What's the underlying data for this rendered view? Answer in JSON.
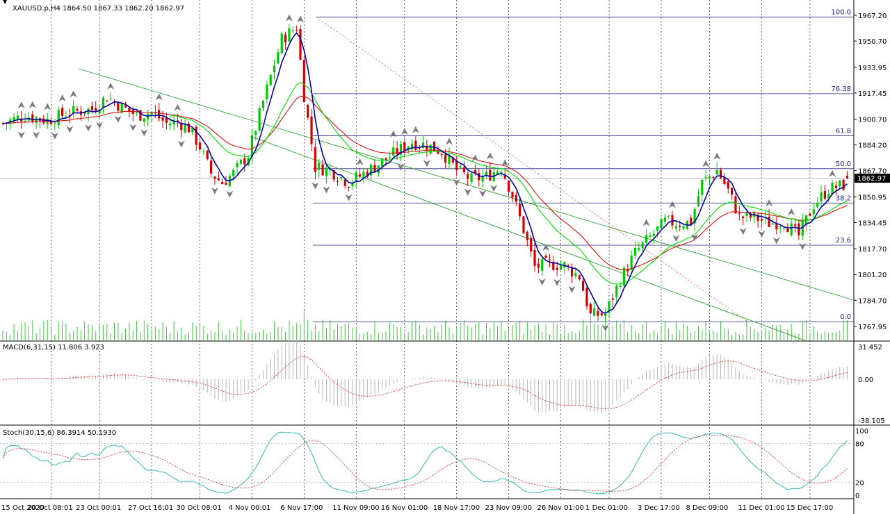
{
  "main": {
    "header": "XAUUSD.p,H4  1864.50 1867.33 1862.20 1862.97",
    "current_price": "1862.97",
    "price_ticks": [
      "1967.20",
      "1950.70",
      "1933.95",
      "1917.45",
      "1900.70",
      "1884.20",
      "1867.70",
      "1850.95",
      "1834.45",
      "1817.70",
      "1801.20",
      "1784.70",
      "1767.95"
    ],
    "fib_levels": [
      {
        "label": "100.0",
        "price": 1966
      },
      {
        "label": "76.38",
        "price": 1917
      },
      {
        "label": "61.8",
        "price": 1890
      },
      {
        "label": "50.0",
        "price": 1869
      },
      {
        "label": "38.2",
        "price": 1847
      },
      {
        "label": "23.6",
        "price": 1820
      },
      {
        "label": "0.0",
        "price": 1771
      }
    ],
    "date_labels": [
      "15 Oct 2020",
      "20 Oct 08:01",
      "23 Oct 00:01",
      "27 Oct 16:01",
      "30 Oct 08:01",
      "4 Nov 00:01",
      "6 Nov 17:00",
      "11 Nov 09:00",
      "16 Nov 01:00",
      "18 Nov 17:00",
      "23 Nov 09:00",
      "26 Nov 01:00",
      "1 Dec 01:00",
      "3 Dec 17:00",
      "8 Dec 09:00",
      "11 Dec 01:00",
      "15 Dec 17:00"
    ]
  },
  "macd": {
    "header": "MACD(6,31,15) 11.806 3.923",
    "ticks": [
      "31.452",
      "0.00",
      "-38.105"
    ]
  },
  "stoch": {
    "header": "Stoch(30,15,6) 86.3914 50.1930",
    "ticks": [
      "100",
      "80",
      "20",
      "0"
    ]
  },
  "colors": {
    "bull": "#00c800",
    "bear": "#d00000",
    "ma_fast": "#0000aa",
    "ma_mid": "#00dd00",
    "ma_slow": "#dd1111",
    "fib": "#1a237e",
    "channel": "#2ea02e",
    "fractal": "#7a7a7a"
  },
  "chart_data": {
    "type": "candlestick",
    "symbol": "XAUUSD.p",
    "timeframe": "H4",
    "ohlc_last": {
      "open": 1864.5,
      "high": 1867.33,
      "low": 1862.2,
      "close": 1862.97
    },
    "ylim": [
      1762,
      1976
    ],
    "close_path": [
      [
        0,
        1898
      ],
      [
        6,
        1903
      ],
      [
        12,
        1900
      ],
      [
        18,
        1905
      ],
      [
        24,
        1907
      ],
      [
        28,
        1915
      ],
      [
        31,
        1910
      ],
      [
        36,
        1903
      ],
      [
        40,
        1905
      ],
      [
        44,
        1898
      ],
      [
        47,
        1899
      ],
      [
        50,
        1895
      ],
      [
        53,
        1883
      ],
      [
        56,
        1866
      ],
      [
        59,
        1860
      ],
      [
        62,
        1866
      ],
      [
        66,
        1878
      ],
      [
        70,
        1912
      ],
      [
        75,
        1952
      ],
      [
        79,
        1960
      ],
      [
        81,
        1916
      ],
      [
        84,
        1870
      ],
      [
        88,
        1868
      ],
      [
        93,
        1860
      ],
      [
        97,
        1866
      ],
      [
        101,
        1872
      ],
      [
        106,
        1880
      ],
      [
        110,
        1886
      ],
      [
        114,
        1884
      ],
      [
        118,
        1880
      ],
      [
        122,
        1868
      ],
      [
        126,
        1862
      ],
      [
        130,
        1864
      ],
      [
        134,
        1870
      ],
      [
        137,
        1852
      ],
      [
        140,
        1830
      ],
      [
        143,
        1806
      ],
      [
        147,
        1808
      ],
      [
        151,
        1807
      ],
      [
        155,
        1800
      ],
      [
        158,
        1775
      ],
      [
        162,
        1776
      ],
      [
        166,
        1798
      ],
      [
        170,
        1815
      ],
      [
        174,
        1825
      ],
      [
        178,
        1835
      ],
      [
        182,
        1834
      ],
      [
        185,
        1835
      ],
      [
        188,
        1860
      ],
      [
        192,
        1868
      ],
      [
        195,
        1855
      ],
      [
        198,
        1838
      ],
      [
        202,
        1838
      ],
      [
        206,
        1834
      ],
      [
        210,
        1835
      ],
      [
        214,
        1826
      ],
      [
        218,
        1846
      ],
      [
        222,
        1856
      ],
      [
        227,
        1859
      ]
    ],
    "volumes_note": "tick volume histogram at bottom of main pane",
    "macd": {
      "fast": 6,
      "slow": 31,
      "signal": 15,
      "main": 11.806,
      "signal_value": 3.923,
      "ylim": [
        -38.105,
        31.452
      ]
    },
    "stochastic": {
      "k": 30,
      "d": 15,
      "slowing": 6,
      "main": 86.3914,
      "signal": 50.193,
      "ylim": [
        0,
        100
      ]
    }
  }
}
